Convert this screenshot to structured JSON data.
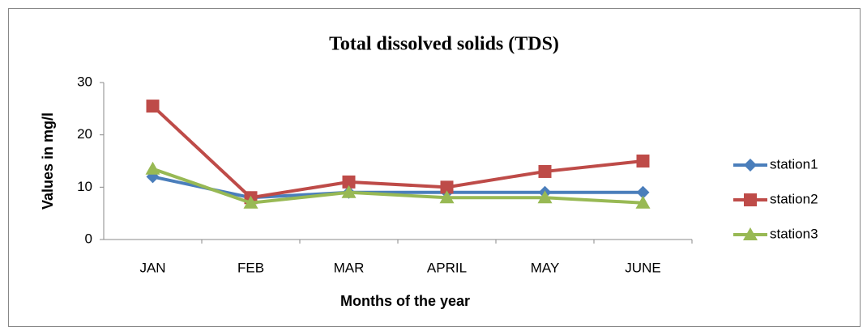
{
  "chart_data": {
    "type": "line",
    "title": "Total dissolved solids (TDS)",
    "x_label": "Months of the year",
    "y_label": "Values in mg/l",
    "categories": [
      "JAN",
      "FEB",
      "MAR",
      "APRIL",
      "MAY",
      "JUNE"
    ],
    "series": [
      {
        "name": "station1",
        "color": "#4a7ebb",
        "marker": "diamond",
        "values": [
          12,
          8,
          9,
          9,
          9,
          9
        ]
      },
      {
        "name": "station2",
        "color": "#be4b48",
        "marker": "square",
        "values": [
          25.5,
          8,
          11,
          10,
          13,
          15
        ]
      },
      {
        "name": "station3",
        "color": "#98b954",
        "marker": "triangle",
        "values": [
          13.5,
          7,
          9,
          8,
          8,
          7
        ]
      }
    ],
    "ylim": [
      0,
      30
    ],
    "yticks": [
      0,
      10,
      20,
      30
    ],
    "grid": false,
    "legend": "right"
  }
}
